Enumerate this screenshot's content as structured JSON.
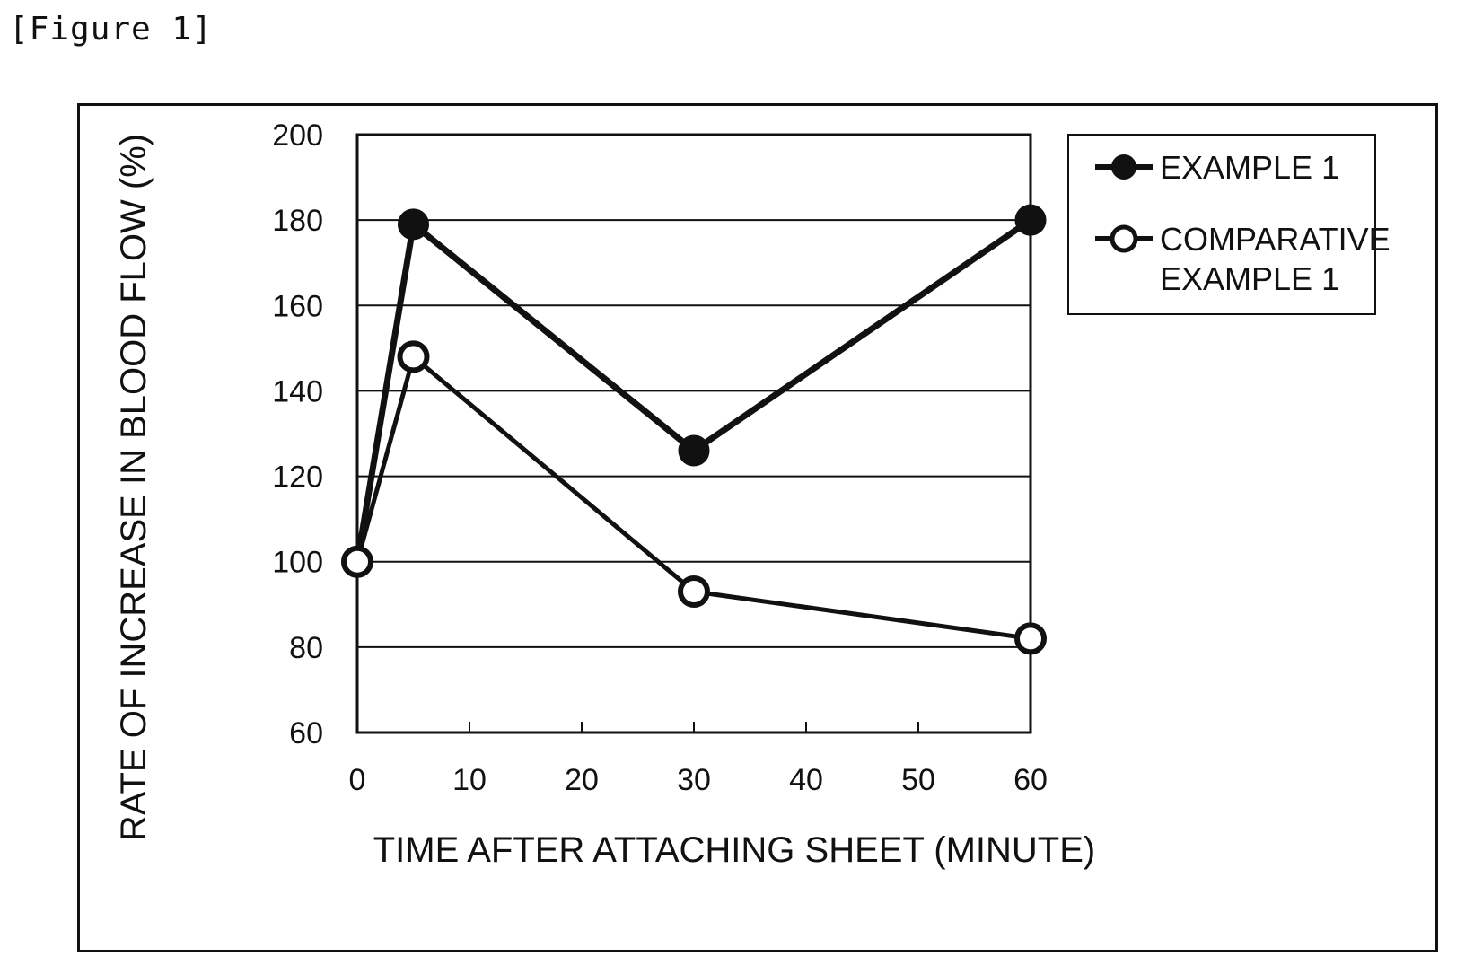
{
  "figure_label": "[Figure 1]",
  "chart_data": {
    "type": "line",
    "x": [
      0,
      5,
      30,
      60
    ],
    "series": [
      {
        "name": "EXAMPLE 1",
        "values": [
          100,
          179,
          126,
          180
        ],
        "marker": "filled-circle",
        "color": "#111111"
      },
      {
        "name": "COMPARATIVE EXAMPLE 1",
        "name_lines": [
          "COMPARATIVE",
          "EXAMPLE 1"
        ],
        "values": [
          100,
          148,
          93,
          82
        ],
        "marker": "open-circle",
        "color": "#111111"
      }
    ],
    "xlabel": "TIME AFTER ATTACHING SHEET (MINUTE)",
    "ylabel": "RATE OF INCREASE IN BLOOD FLOW (%)",
    "xlim": [
      0,
      60
    ],
    "ylim": [
      60,
      200
    ],
    "xticks": [
      0,
      10,
      20,
      30,
      40,
      50,
      60
    ],
    "yticks": [
      60,
      80,
      100,
      120,
      140,
      160,
      180,
      200
    ],
    "grid": "horizontal",
    "legend_position": "top-right"
  }
}
